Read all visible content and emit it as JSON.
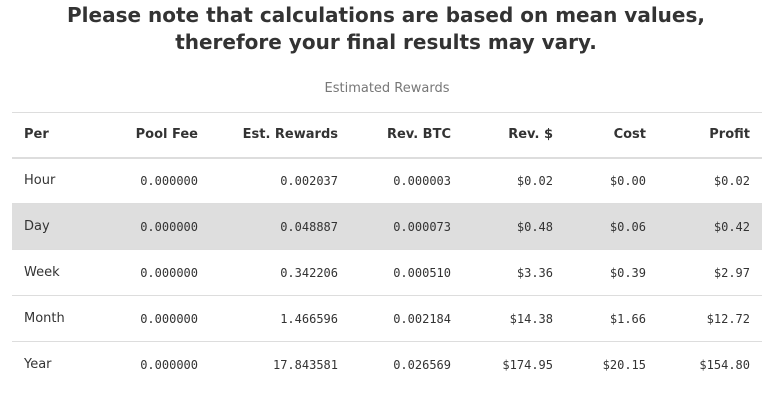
{
  "notice": {
    "line1": "Please note that calculations are based on mean values,",
    "line2": "therefore your final results may vary."
  },
  "table": {
    "caption": "Estimated Rewards",
    "headers": [
      "Per",
      "Pool Fee",
      "Est. Rewards",
      "Rev. BTC",
      "Rev. $",
      "Cost",
      "Profit"
    ],
    "rows": [
      [
        "Hour",
        "0.000000",
        "0.002037",
        "0.000003",
        "$0.02",
        "$0.00",
        "$0.02"
      ],
      [
        "Day",
        "0.000000",
        "0.048887",
        "0.000073",
        "$0.48",
        "$0.06",
        "$0.42"
      ],
      [
        "Week",
        "0.000000",
        "0.342206",
        "0.000510",
        "$3.36",
        "$0.39",
        "$2.97"
      ],
      [
        "Month",
        "0.000000",
        "1.466596",
        "0.002184",
        "$14.38",
        "$1.66",
        "$12.72"
      ],
      [
        "Year",
        "0.000000",
        "17.843581",
        "0.026569",
        "$174.95",
        "$20.15",
        "$154.80"
      ]
    ]
  },
  "colors": {
    "highlight_row": "#dedede",
    "text": "#333333",
    "caption": "#777777",
    "border": "#dddddd"
  }
}
